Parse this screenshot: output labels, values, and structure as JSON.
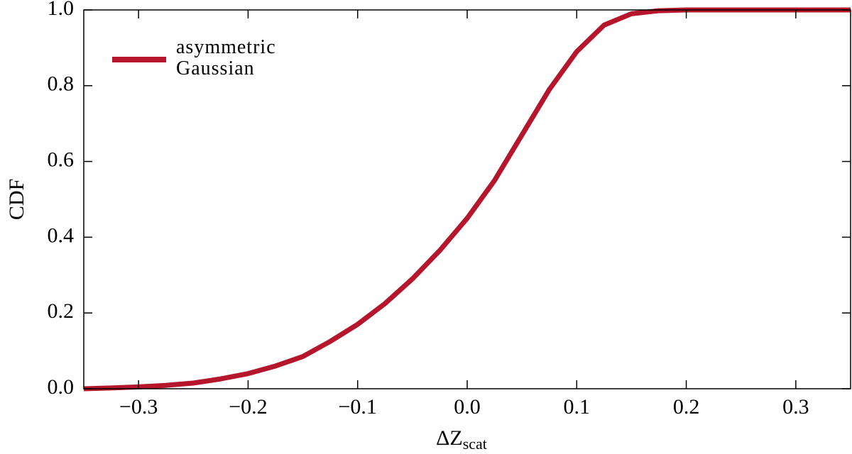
{
  "chart_data": {
    "type": "line",
    "xlabel": {
      "main": "ΔZ",
      "sub": "scat"
    },
    "ylabel": "CDF",
    "x": [
      -0.35,
      -0.325,
      -0.3,
      -0.275,
      -0.25,
      -0.225,
      -0.2,
      -0.175,
      -0.15,
      -0.125,
      -0.1,
      -0.075,
      -0.05,
      -0.025,
      0.0,
      0.025,
      0.05,
      0.075,
      0.1,
      0.125,
      0.15,
      0.175,
      0.2,
      0.25,
      0.3,
      0.35
    ],
    "series": [
      {
        "name": "asymmetric\nGaussian",
        "color": "#b5162b",
        "values": [
          0.0,
          0.002,
          0.005,
          0.009,
          0.015,
          0.026,
          0.04,
          0.06,
          0.085,
          0.125,
          0.17,
          0.225,
          0.29,
          0.365,
          0.45,
          0.55,
          0.67,
          0.79,
          0.89,
          0.96,
          0.99,
          0.998,
          1.0,
          1.0,
          1.0,
          1.0
        ]
      }
    ],
    "xlim": [
      -0.35,
      0.35
    ],
    "ylim": [
      0,
      1
    ],
    "xticks": [
      {
        "value": -0.3,
        "label": "−0.3"
      },
      {
        "value": -0.2,
        "label": "−0.2"
      },
      {
        "value": -0.1,
        "label": "−0.1"
      },
      {
        "value": 0,
        "label": "0.0"
      },
      0.1,
      0.2,
      0.3
    ],
    "yticks": [
      {
        "value": 0,
        "label": "0.0"
      },
      0.2,
      0.4,
      0.6,
      0.8,
      {
        "value": 1,
        "label": "1.0"
      }
    ],
    "legend": "upper left",
    "grid": false
  }
}
